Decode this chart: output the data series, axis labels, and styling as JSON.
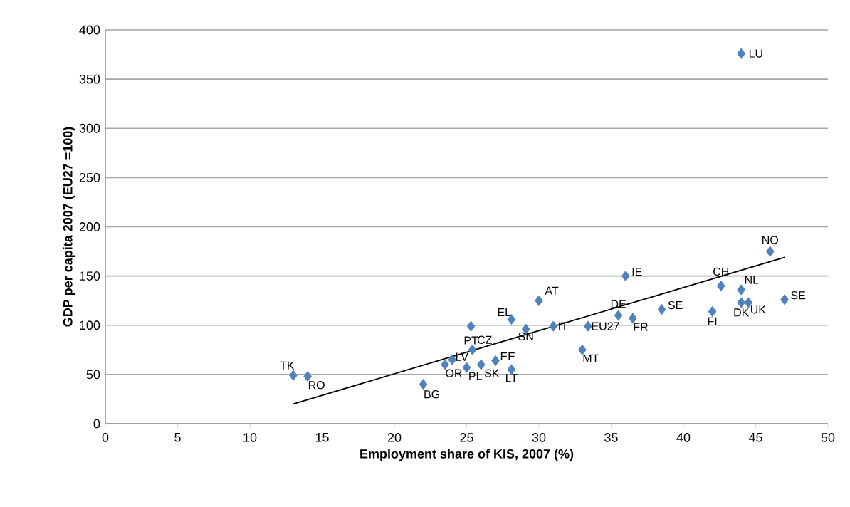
{
  "chart_data": {
    "type": "scatter",
    "xlabel": "Employment share of KIS, 2007 (%)",
    "ylabel": "GDP per capita 2007 (EU27 =100)",
    "xlim": [
      0,
      50
    ],
    "xticks": [
      0,
      5,
      10,
      15,
      20,
      25,
      30,
      35,
      40,
      45,
      50
    ],
    "ylim": [
      0,
      400
    ],
    "yticks": [
      0,
      50,
      100,
      150,
      200,
      250,
      300,
      350,
      400
    ],
    "grid": "y",
    "marker": "diamond",
    "series": [
      {
        "color": "#4f81bd",
        "x": [
          13,
          14,
          22,
          23.5,
          24,
          25,
          25.4,
          26,
          25.3,
          27,
          28.1,
          28.1,
          29.1,
          30,
          31,
          33.4,
          33,
          36,
          35.5,
          36.5,
          38.5,
          42,
          42.6,
          44,
          44,
          44.5,
          47,
          46,
          44
        ],
        "values": [
          49,
          48,
          40,
          60,
          65,
          57,
          75,
          60,
          99,
          64,
          55,
          106,
          96,
          125,
          99,
          99,
          75,
          150,
          110,
          107,
          116,
          114,
          140,
          136,
          123,
          123,
          126,
          175,
          376
        ]
      },
      {
        "type": "line",
        "marker": "none",
        "color": "#000000",
        "x": [
          13,
          47
        ],
        "values": [
          20,
          169
        ]
      }
    ],
    "annotations": [
      {
        "text": "TK",
        "x": 13,
        "y": 49
      },
      {
        "text": "RO",
        "x": 14,
        "y": 48
      },
      {
        "text": "BG",
        "x": 22,
        "y": 40
      },
      {
        "text": "OR",
        "x": 23.5,
        "y": 60
      },
      {
        "text": "LV",
        "x": 24,
        "y": 65
      },
      {
        "text": "PL",
        "x": 25,
        "y": 57
      },
      {
        "text": "CZ",
        "x": 25.4,
        "y": 75
      },
      {
        "text": "SK",
        "x": 26,
        "y": 60
      },
      {
        "text": "PT",
        "x": 25.3,
        "y": 99
      },
      {
        "text": "EE",
        "x": 27,
        "y": 64
      },
      {
        "text": "LT",
        "x": 28.1,
        "y": 55
      },
      {
        "text": "EL",
        "x": 28.1,
        "y": 106
      },
      {
        "text": "SN",
        "x": 29.1,
        "y": 96
      },
      {
        "text": "AT",
        "x": 30,
        "y": 125
      },
      {
        "text": "IT",
        "x": 31,
        "y": 99
      },
      {
        "text": "EU27",
        "x": 33.4,
        "y": 99
      },
      {
        "text": "MT",
        "x": 33,
        "y": 75
      },
      {
        "text": "IE",
        "x": 36,
        "y": 150
      },
      {
        "text": "DE",
        "x": 35.5,
        "y": 110
      },
      {
        "text": "FR",
        "x": 36.5,
        "y": 107
      },
      {
        "text": "SE",
        "x": 38.5,
        "y": 116
      },
      {
        "text": "FI",
        "x": 42,
        "y": 114
      },
      {
        "text": "CH",
        "x": 42.6,
        "y": 140
      },
      {
        "text": "NL",
        "x": 44,
        "y": 136
      },
      {
        "text": "DK",
        "x": 44,
        "y": 123
      },
      {
        "text": "UK",
        "x": 44.5,
        "y": 123
      },
      {
        "text": "SE",
        "x": 47,
        "y": 126
      },
      {
        "text": "NO",
        "x": 46,
        "y": 175
      },
      {
        "text": "LU",
        "x": 44,
        "y": 376
      }
    ]
  }
}
